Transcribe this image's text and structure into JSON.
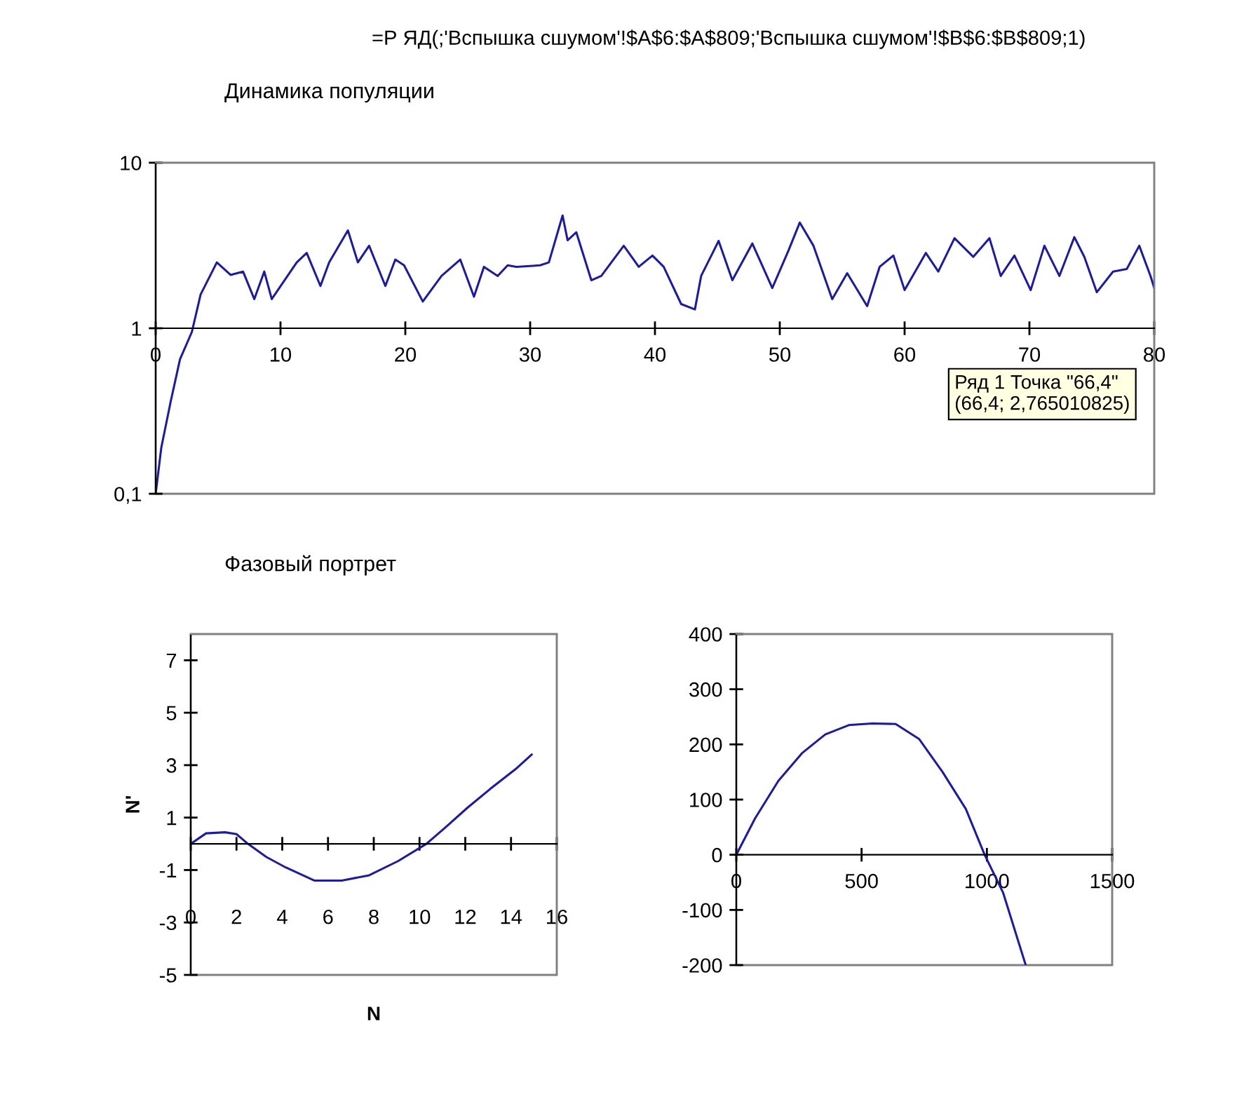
{
  "chart_data": [
    {
      "type": "line",
      "title": "Динамика популяции",
      "log": "y",
      "grid": false,
      "annotations": [
        "=Р ЯД(;'Вспышка сшумом'!$A$6:$A$809;'Вспышка сшумом'!$B$6:$B$809;1)",
        "Ряд 1 Точка \"66,4\"\n(66,4; 2,765010825)"
      ],
      "xlim": [
        0,
        80
      ],
      "xticks": [
        0,
        10,
        20,
        30,
        40,
        50,
        60,
        70,
        80
      ],
      "ylim": [
        0.1,
        10
      ],
      "yticks": [
        {
          "value": 0.1,
          "label": "0,1"
        },
        1,
        10
      ],
      "series": [
        {
          "color": "#1c1c9c",
          "x": [
            0,
            0.45,
            1.2,
            1.95,
            2.9,
            3.6,
            4.9,
            6.0,
            7.0,
            7.9,
            8.7,
            9.3,
            11.3,
            12.1,
            13.2,
            13.9,
            15.4,
            16.2,
            17.1,
            18.4,
            19.2,
            19.9,
            21.4,
            22.9,
            24.4,
            25.5,
            26.3,
            27.4,
            28.2,
            28.9,
            30.8,
            31.5,
            32.6,
            33.0,
            33.7,
            34.9,
            35.7,
            37.5,
            38.7,
            39.8,
            40.7,
            42.1,
            43.2,
            43.7,
            45.1,
            46.2,
            47.8,
            49.4,
            50.7,
            51.6,
            52.7,
            54.2,
            55.4,
            57.0,
            58.0,
            59.1,
            60.0,
            61.7,
            62.7,
            64.0,
            65.5,
            66.8,
            67.7,
            68.8,
            70.1,
            71.2,
            72.4,
            73.6,
            74.4,
            75.4,
            76.7,
            77.8,
            78.8,
            79.7,
            80
          ],
          "values": [
            0.1,
            0.19,
            0.36,
            0.65,
            0.95,
            1.6,
            2.5,
            2.1,
            2.2,
            1.5,
            2.2,
            1.5,
            2.5,
            2.85,
            1.8,
            2.5,
            3.9,
            2.5,
            3.15,
            1.8,
            2.6,
            2.4,
            1.45,
            2.07,
            2.6,
            1.55,
            2.35,
            2.07,
            2.4,
            2.35,
            2.4,
            2.5,
            4.8,
            3.4,
            3.8,
            1.95,
            2.07,
            3.15,
            2.35,
            2.75,
            2.35,
            1.4,
            1.3,
            2.07,
            3.37,
            1.95,
            3.25,
            1.75,
            2.95,
            4.35,
            3.15,
            1.5,
            2.15,
            1.36,
            2.35,
            2.75,
            1.7,
            2.85,
            2.2,
            3.5,
            2.7,
            3.5,
            2.07,
            2.75,
            1.7,
            3.15,
            2.07,
            3.55,
            2.7,
            1.65,
            2.2,
            2.28,
            3.15,
            2.07,
            1.75
          ]
        }
      ]
    },
    {
      "type": "line",
      "title": "Фазовый портрет",
      "xlabel": "N",
      "ylabel": "N'",
      "grid": false,
      "xlim": [
        0,
        16
      ],
      "xticks": [
        0,
        2,
        4,
        6,
        8,
        10,
        12,
        14,
        16
      ],
      "ylim": [
        -5,
        8
      ],
      "yticks": [
        -5,
        -3,
        -1,
        1,
        3,
        5,
        7
      ],
      "series": [
        {
          "color": "#1c1c9c",
          "x": [
            0,
            0.67,
            1.5,
            2.0,
            2.5,
            3.3,
            4.15,
            5.4,
            6.6,
            7.8,
            9.06,
            10.3,
            11.1,
            12.1,
            13.1,
            14.2,
            14.9
          ],
          "values": [
            0,
            0.4,
            0.44,
            0.37,
            0,
            -0.5,
            -0.9,
            -1.4,
            -1.4,
            -1.2,
            -0.66,
            0,
            0.6,
            1.38,
            2.1,
            2.85,
            3.4
          ]
        }
      ]
    },
    {
      "type": "line",
      "grid": false,
      "xlim": [
        0,
        1500
      ],
      "xticks": [
        0,
        500,
        1000,
        1500
      ],
      "ylim": [
        -200,
        400
      ],
      "yticks": [
        -200,
        -100,
        0,
        100,
        200,
        300,
        400
      ],
      "series": [
        {
          "color": "#1c1c9c",
          "x": [
            0,
            75,
            168,
            262,
            355,
            449,
            542,
            636,
            729,
            823,
            916,
            991,
            1065,
            1155
          ],
          "values": [
            0,
            66,
            134,
            184,
            218,
            235,
            238,
            237,
            210,
            150,
            83,
            0,
            -69,
            -200
          ]
        }
      ]
    }
  ]
}
